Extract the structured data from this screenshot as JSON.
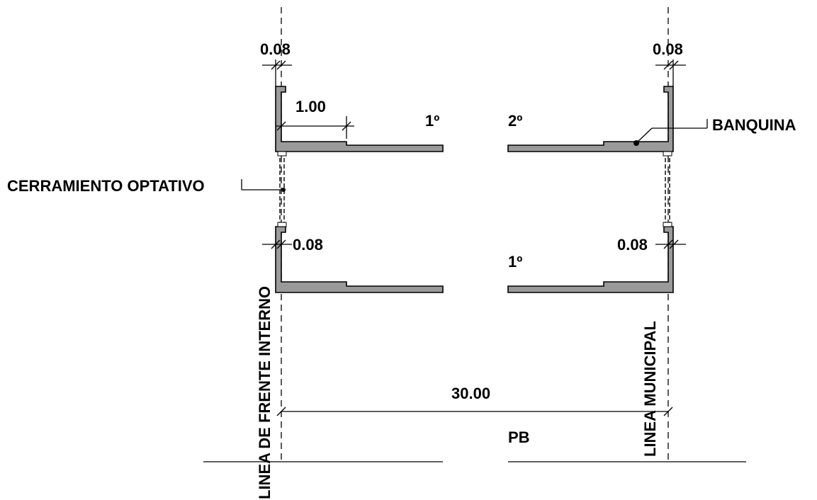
{
  "labels": {
    "dim_top_left": "0.08",
    "dim_top_right": "0.08",
    "dim_mid_left": "0.08",
    "dim_mid_right": "0.08",
    "dim_cantilever": "1.00",
    "dim_total": "30.00",
    "floor_1_top": "1º",
    "floor_2_top": "2º",
    "floor_1_mid": "1º",
    "floor_pb": "PB",
    "banquina": "BANQUINA",
    "cerramiento": "CERRAMIENTO OPTATIVO",
    "linea_frente": "LINEA DE FRENTE INTERNO",
    "linea_municipal": "LINEA MUNICIPAL"
  },
  "colors": {
    "slab_fill": "#9a9a9a",
    "line": "#000000",
    "background": "#ffffff"
  }
}
